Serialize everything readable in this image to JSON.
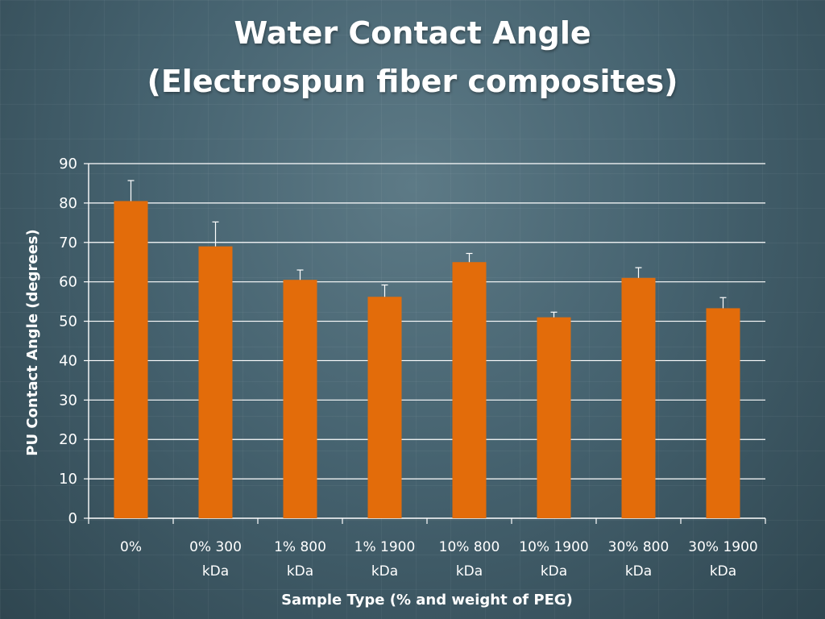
{
  "header": {
    "title_line1": "Water Contact Angle",
    "title_line2": "(Electrospun fiber composites)"
  },
  "chart_data": {
    "type": "bar",
    "title": "Water Contact Angle (Electrospun fiber composites)",
    "categories": [
      [
        "0%"
      ],
      [
        "0% 300",
        "kDa"
      ],
      [
        "1% 800",
        "kDa"
      ],
      [
        "1% 1900",
        "kDa"
      ],
      [
        "10% 800",
        "kDa"
      ],
      [
        "10% 1900",
        "kDa"
      ],
      [
        "30% 800",
        "kDa"
      ],
      [
        "30% 1900",
        "kDa"
      ]
    ],
    "values": [
      80.5,
      69,
      60.5,
      56.2,
      65,
      51,
      61,
      53.3
    ],
    "error": [
      5.2,
      6.2,
      2.5,
      3.0,
      2.2,
      1.3,
      2.6,
      2.7
    ],
    "xlabel": "Sample Type (% and weight of PEG)",
    "ylabel": "PU Contact Angle (degrees)",
    "ylim": [
      0,
      90
    ],
    "yticks": [
      0,
      10,
      20,
      30,
      40,
      50,
      60,
      70,
      80,
      90
    ],
    "bar_color": "#e36c0a",
    "grid": true,
    "legend": "none"
  }
}
